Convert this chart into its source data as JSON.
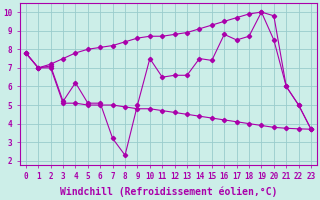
{
  "bg_color": "#cceee8",
  "line_color": "#aa00aa",
  "grid_color": "#99cccc",
  "xlabel": "Windchill (Refroidissement éolien,°C)",
  "xlabel_fontsize": 7,
  "tick_fontsize": 5.5,
  "xlim": [
    -0.5,
    23.5
  ],
  "ylim": [
    1.8,
    10.5
  ],
  "yticks": [
    2,
    3,
    4,
    5,
    6,
    7,
    8,
    9,
    10
  ],
  "xticks": [
    0,
    1,
    2,
    3,
    4,
    5,
    6,
    7,
    8,
    9,
    10,
    11,
    12,
    13,
    14,
    15,
    16,
    17,
    18,
    19,
    20,
    21,
    22,
    23
  ],
  "line_top_x": [
    0,
    1,
    2,
    3,
    4,
    5,
    6,
    7,
    8,
    9,
    10,
    11,
    12,
    13,
    14,
    15,
    16,
    17,
    18,
    19,
    20,
    21,
    22,
    23
  ],
  "line_top_y": [
    7.8,
    7.0,
    7.2,
    7.5,
    7.8,
    8.0,
    8.1,
    8.2,
    8.4,
    8.6,
    8.7,
    8.7,
    8.8,
    8.9,
    9.1,
    9.3,
    9.5,
    9.7,
    9.9,
    10.0,
    8.5,
    6.0,
    5.0,
    3.7
  ],
  "line_mid_x": [
    0,
    1,
    2,
    3,
    4,
    5,
    6,
    7,
    8,
    9,
    10,
    11,
    12,
    13,
    14,
    15,
    16,
    17,
    18,
    19,
    20,
    21,
    22,
    23
  ],
  "line_mid_y": [
    7.8,
    7.0,
    7.1,
    5.2,
    6.2,
    5.1,
    5.1,
    3.2,
    2.3,
    5.0,
    7.5,
    6.5,
    6.6,
    6.6,
    7.5,
    7.4,
    8.8,
    8.5,
    8.7,
    10.0,
    9.8,
    6.0,
    5.0,
    3.7
  ],
  "line_bot_x": [
    0,
    1,
    2,
    3,
    4,
    5,
    6,
    7,
    8,
    9,
    10,
    11,
    12,
    13,
    14,
    15,
    16,
    17,
    18,
    19,
    20,
    21,
    22,
    23
  ],
  "line_bot_y": [
    7.8,
    7.0,
    7.0,
    5.1,
    5.1,
    5.0,
    5.0,
    5.0,
    4.9,
    4.8,
    4.8,
    4.7,
    4.6,
    4.5,
    4.4,
    4.3,
    4.2,
    4.1,
    4.0,
    3.9,
    3.8,
    3.75,
    3.72,
    3.7
  ]
}
